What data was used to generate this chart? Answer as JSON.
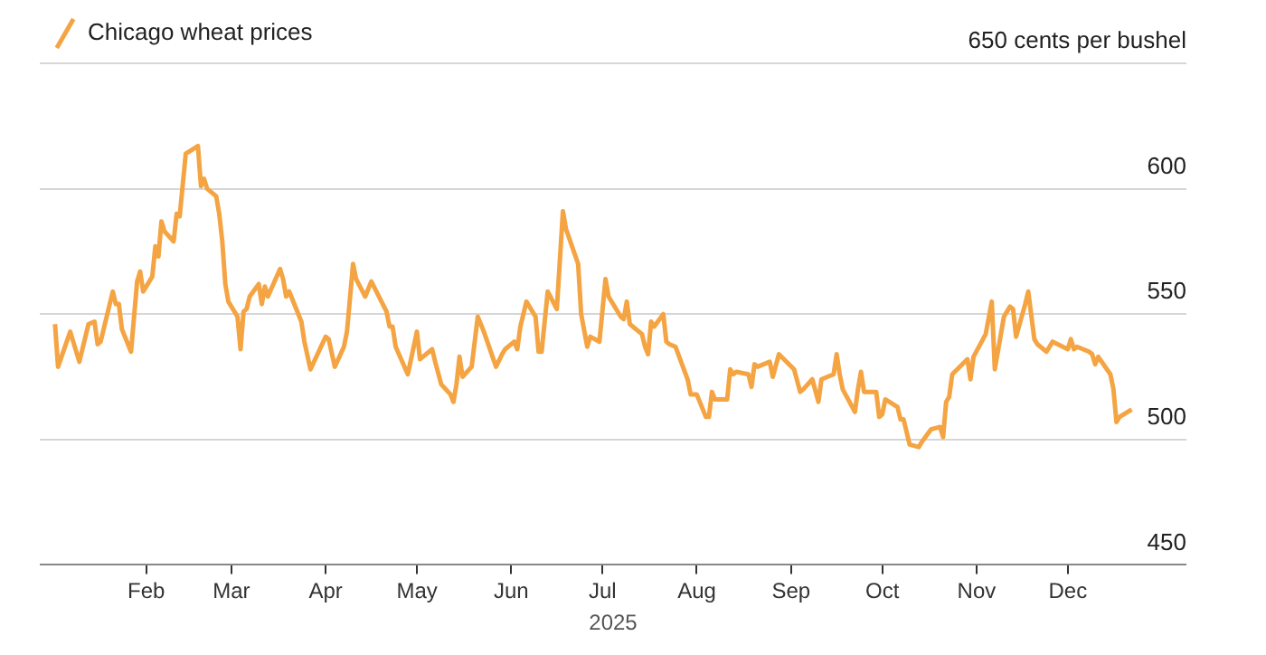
{
  "chart_data": {
    "type": "line",
    "xlabel": "2025",
    "legend": "top left",
    "grid": "y",
    "marker": "none",
    "line_style": "solid",
    "xlim": [
      "2024-12-28",
      "2026-01-09"
    ],
    "xticks": [
      {
        "value": "2025-02-01",
        "label": "Feb"
      },
      {
        "value": "2025-03-01",
        "label": "Mar"
      },
      {
        "value": "2025-04-01",
        "label": "Apr"
      },
      {
        "value": "2025-05-01",
        "label": "May"
      },
      {
        "value": "2025-06-01",
        "label": "Jun"
      },
      {
        "value": "2025-07-01",
        "label": "Jul"
      },
      {
        "value": "2025-08-01",
        "label": "Aug"
      },
      {
        "value": "2025-09-01",
        "label": "Sep"
      },
      {
        "value": "2025-10-01",
        "label": "Oct"
      },
      {
        "value": "2025-11-01",
        "label": "Nov"
      },
      {
        "value": "2025-12-01",
        "label": "Dec"
      }
    ],
    "ylim": [
      450,
      650
    ],
    "yticks": [
      450,
      500,
      550,
      600,
      {
        "value": 650,
        "label": "650 cents per bushel"
      }
    ],
    "x": [
      "2025-01-02",
      "2025-01-03",
      "2025-01-07",
      "2025-01-10",
      "2025-01-13",
      "2025-01-15",
      "2025-01-16",
      "2025-01-17",
      "2025-01-21",
      "2025-01-22",
      "2025-01-23",
      "2025-01-24",
      "2025-01-27",
      "2025-01-29",
      "2025-01-30",
      "2025-01-31",
      "2025-02-03",
      "2025-02-04",
      "2025-02-05",
      "2025-02-06",
      "2025-02-07",
      "2025-02-10",
      "2025-02-11",
      "2025-02-12",
      "2025-02-14",
      "2025-02-18",
      "2025-02-19",
      "2025-02-20",
      "2025-02-21",
      "2025-02-24",
      "2025-02-25",
      "2025-02-26",
      "2025-02-27",
      "2025-02-28",
      "2025-03-03",
      "2025-03-04",
      "2025-03-05",
      "2025-03-06",
      "2025-03-07",
      "2025-03-10",
      "2025-03-11",
      "2025-03-12",
      "2025-03-13",
      "2025-03-17",
      "2025-03-18",
      "2025-03-19",
      "2025-03-20",
      "2025-03-24",
      "2025-03-25",
      "2025-03-27",
      "2025-04-01",
      "2025-04-02",
      "2025-04-04",
      "2025-04-07",
      "2025-04-08",
      "2025-04-10",
      "2025-04-11",
      "2025-04-14",
      "2025-04-16",
      "2025-04-21",
      "2025-04-22",
      "2025-04-23",
      "2025-04-24",
      "2025-04-28",
      "2025-05-01",
      "2025-05-02",
      "2025-05-06",
      "2025-05-07",
      "2025-05-09",
      "2025-05-12",
      "2025-05-13",
      "2025-05-14",
      "2025-05-15",
      "2025-05-16",
      "2025-05-19",
      "2025-05-21",
      "2025-05-23",
      "2025-05-27",
      "2025-05-29",
      "2025-05-30",
      "2025-06-02",
      "2025-06-03",
      "2025-06-04",
      "2025-06-06",
      "2025-06-09",
      "2025-06-10",
      "2025-06-11",
      "2025-06-13",
      "2025-06-16",
      "2025-06-18",
      "2025-06-19",
      "2025-06-23",
      "2025-06-24",
      "2025-06-26",
      "2025-06-27",
      "2025-06-30",
      "2025-07-02",
      "2025-07-03",
      "2025-07-07",
      "2025-07-08",
      "2025-07-09",
      "2025-07-10",
      "2025-07-14",
      "2025-07-15",
      "2025-07-16",
      "2025-07-17",
      "2025-07-18",
      "2025-07-21",
      "2025-07-22",
      "2025-07-23",
      "2025-07-25",
      "2025-07-29",
      "2025-07-30",
      "2025-08-01",
      "2025-08-04",
      "2025-08-05",
      "2025-08-06",
      "2025-08-07",
      "2025-08-11",
      "2025-08-12",
      "2025-08-13",
      "2025-08-14",
      "2025-08-18",
      "2025-08-19",
      "2025-08-20",
      "2025-08-21",
      "2025-08-25",
      "2025-08-26",
      "2025-08-28",
      "2025-09-02",
      "2025-09-04",
      "2025-09-05",
      "2025-09-08",
      "2025-09-10",
      "2025-09-11",
      "2025-09-15",
      "2025-09-16",
      "2025-09-17",
      "2025-09-18",
      "2025-09-22",
      "2025-09-23",
      "2025-09-24",
      "2025-09-25",
      "2025-09-29",
      "2025-09-30",
      "2025-10-01",
      "2025-10-02",
      "2025-10-06",
      "2025-10-07",
      "2025-10-08",
      "2025-10-10",
      "2025-10-13",
      "2025-10-14",
      "2025-10-17",
      "2025-10-20",
      "2025-10-21",
      "2025-10-22",
      "2025-10-23",
      "2025-10-24",
      "2025-10-29",
      "2025-10-30",
      "2025-10-31",
      "2025-11-04",
      "2025-11-06",
      "2025-11-07",
      "2025-11-10",
      "2025-11-12",
      "2025-11-13",
      "2025-11-14",
      "2025-11-17",
      "2025-11-18",
      "2025-11-20",
      "2025-11-21",
      "2025-11-24",
      "2025-11-26",
      "2025-12-01",
      "2025-12-02",
      "2025-12-03",
      "2025-12-04",
      "2025-12-08",
      "2025-12-09",
      "2025-12-10",
      "2025-12-11",
      "2025-12-15",
      "2025-12-16",
      "2025-12-17",
      "2025-12-18",
      "2025-12-22"
    ],
    "series": [
      {
        "name": "Chicago wheat prices",
        "color": "#f4a442",
        "values": [
          546,
          529,
          543,
          531,
          546,
          547,
          538,
          539,
          559,
          554,
          554,
          544,
          535,
          563,
          567,
          559,
          565,
          577,
          573,
          587,
          583,
          579,
          590,
          589,
          614,
          617,
          601,
          604,
          600,
          597,
          590,
          579,
          562,
          555,
          549,
          536,
          551,
          552,
          557,
          562,
          554,
          561,
          557,
          568,
          564,
          557,
          559,
          547,
          539,
          528,
          541,
          540,
          529,
          537,
          543,
          570,
          564,
          557,
          563,
          551,
          545,
          545,
          537,
          526,
          543,
          532,
          536,
          531,
          522,
          518,
          515,
          522,
          533,
          525,
          529,
          549,
          543,
          529,
          534,
          536,
          539,
          536,
          545,
          555,
          549,
          535,
          535,
          559,
          552,
          591,
          584,
          570,
          550,
          537,
          541,
          539,
          564,
          557,
          549,
          548,
          555,
          546,
          542,
          537,
          534,
          547,
          545,
          550,
          539,
          538,
          537,
          524,
          518,
          518,
          509,
          509,
          519,
          516,
          516,
          528,
          526,
          527,
          526,
          521,
          530,
          529,
          531,
          525,
          534,
          528,
          519,
          520,
          524,
          515,
          524,
          526,
          534,
          526,
          520,
          511,
          520,
          527,
          519,
          519,
          509,
          510,
          516,
          513,
          508,
          508,
          498,
          497,
          499,
          504,
          505,
          501,
          515,
          517,
          526,
          532,
          524,
          533,
          542,
          555,
          528,
          549,
          553,
          552,
          541,
          554,
          559,
          540,
          538,
          535,
          539,
          536,
          540,
          536,
          537,
          535,
          534,
          530,
          533,
          526,
          520,
          507,
          509,
          512
        ]
      }
    ]
  }
}
